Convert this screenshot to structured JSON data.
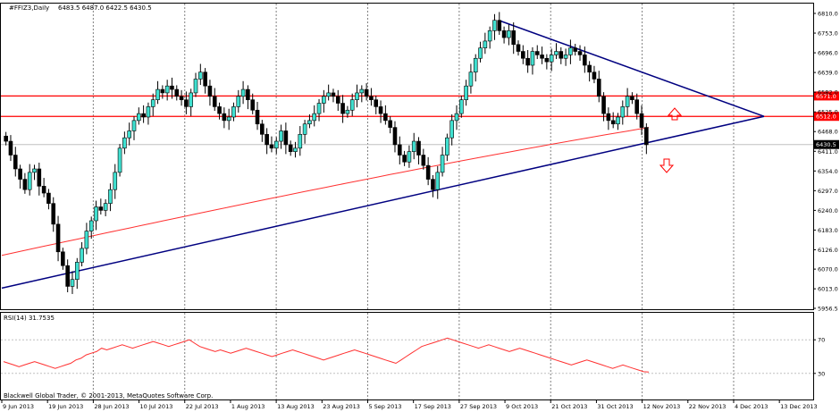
{
  "header": {
    "symbol": "#FFIZ3,Daily",
    "ohlc": "6483.5 6487.0 6422.5 6430.5"
  },
  "rsi_label": "RSI(14) 31.7535",
  "copyright": "Blackwell Global Trader, © 2001-2013, MetaQuotes Software Corp.",
  "colors": {
    "bull": "#40e0d0",
    "bear": "#000000",
    "ma": "#ff3030",
    "resistance": "#ff0000",
    "trendline": "#000080",
    "arrow": "#ff0000",
    "grid": "#808080"
  },
  "chart_data": [
    {
      "type": "candlestick",
      "title": "#FFIZ3,Daily",
      "ylim": [
        5956.5,
        6810.0
      ],
      "y_ticks": [
        "6810.0",
        "6753.0",
        "6696.0",
        "6639.0",
        "6582.0",
        "6525.0",
        "6468.0",
        "6411.0",
        "6354.0",
        "6297.0",
        "6240.0",
        "6183.0",
        "6126.0",
        "6070.0",
        "6013.0",
        "5956.5"
      ],
      "x_labels": [
        "9 Jun 2013",
        "19 Jun 2013",
        "28 Jun 2013",
        "10 Jul 2013",
        "22 Jul 2013",
        "1 Aug 2013",
        "13 Aug 2013",
        "23 Aug 2013",
        "5 Sep 2013",
        "17 Sep 2013",
        "27 Sep 2013",
        "9 Oct 2013",
        "21 Oct 2013",
        "31 Oct 2013",
        "12 Nov 2013",
        "22 Nov 2013",
        "4 Dec 2013",
        "13 Dec 2013"
      ],
      "current_price": "6430.5",
      "resistance_levels": [
        "6571.0",
        "6512.0"
      ],
      "close_series": [
        6440,
        6400,
        6360,
        6330,
        6300,
        6350,
        6360,
        6310,
        6290,
        6260,
        6200,
        6120,
        6080,
        6020,
        6040,
        6090,
        6130,
        6180,
        6210,
        6250,
        6240,
        6260,
        6300,
        6350,
        6420,
        6450,
        6470,
        6500,
        6520,
        6510,
        6540,
        6560,
        6590,
        6580,
        6600,
        6590,
        6570,
        6560,
        6540,
        6580,
        6620,
        6640,
        6600,
        6570,
        6540,
        6520,
        6500,
        6510,
        6540,
        6570,
        6590,
        6560,
        6530,
        6490,
        6460,
        6430,
        6420,
        6440,
        6470,
        6430,
        6410,
        6420,
        6460,
        6490,
        6500,
        6520,
        6550,
        6570,
        6580,
        6570,
        6550,
        6520,
        6530,
        6560,
        6580,
        6590,
        6570,
        6560,
        6540,
        6520,
        6500,
        6480,
        6430,
        6400,
        6380,
        6410,
        6440,
        6400,
        6370,
        6330,
        6300,
        6350,
        6400,
        6450,
        6500,
        6520,
        6560,
        6600,
        6640,
        6680,
        6710,
        6730,
        6760,
        6790,
        6760,
        6740,
        6760,
        6720,
        6700,
        6680,
        6660,
        6700,
        6690,
        6680,
        6670,
        6690,
        6700,
        6680,
        6690,
        6710,
        6700,
        6690,
        6660,
        6640,
        6620,
        6570,
        6520,
        6500,
        6490,
        6510,
        6540,
        6570,
        6560,
        6520,
        6480,
        6430
      ],
      "ma_endpoints": [
        6110,
        6480
      ],
      "trendline_support": {
        "from": 6015,
        "to": 6512
      },
      "trendline_resistance": {
        "from": 6790,
        "to": 6512
      }
    },
    {
      "type": "line",
      "title": "RSI(14) 31.7535",
      "ylim": [
        0,
        100
      ],
      "y_ticks": [
        "70",
        "30"
      ],
      "values": [
        44,
        42,
        40,
        38,
        40,
        42,
        44,
        42,
        40,
        38,
        36,
        38,
        40,
        42,
        46,
        48,
        52,
        54,
        56,
        60,
        58,
        60,
        62,
        64,
        62,
        60,
        62,
        64,
        66,
        68,
        66,
        64,
        62,
        64,
        66,
        68,
        70,
        66,
        62,
        60,
        58,
        56,
        58,
        56,
        54,
        56,
        58,
        60,
        58,
        56,
        54,
        52,
        50,
        52,
        54,
        56,
        58,
        56,
        54,
        52,
        50,
        48,
        46,
        48,
        50,
        52,
        54,
        56,
        58,
        56,
        54,
        52,
        50,
        48,
        46,
        44,
        42,
        46,
        50,
        54,
        58,
        62,
        64,
        66,
        68,
        70,
        72,
        70,
        68,
        66,
        64,
        62,
        60,
        62,
        64,
        62,
        60,
        58,
        56,
        58,
        60,
        58,
        56,
        54,
        52,
        50,
        48,
        46,
        44,
        42,
        40,
        42,
        44,
        46,
        44,
        42,
        40,
        38,
        36,
        38,
        40,
        38,
        36,
        34,
        32,
        31.75
      ]
    }
  ]
}
